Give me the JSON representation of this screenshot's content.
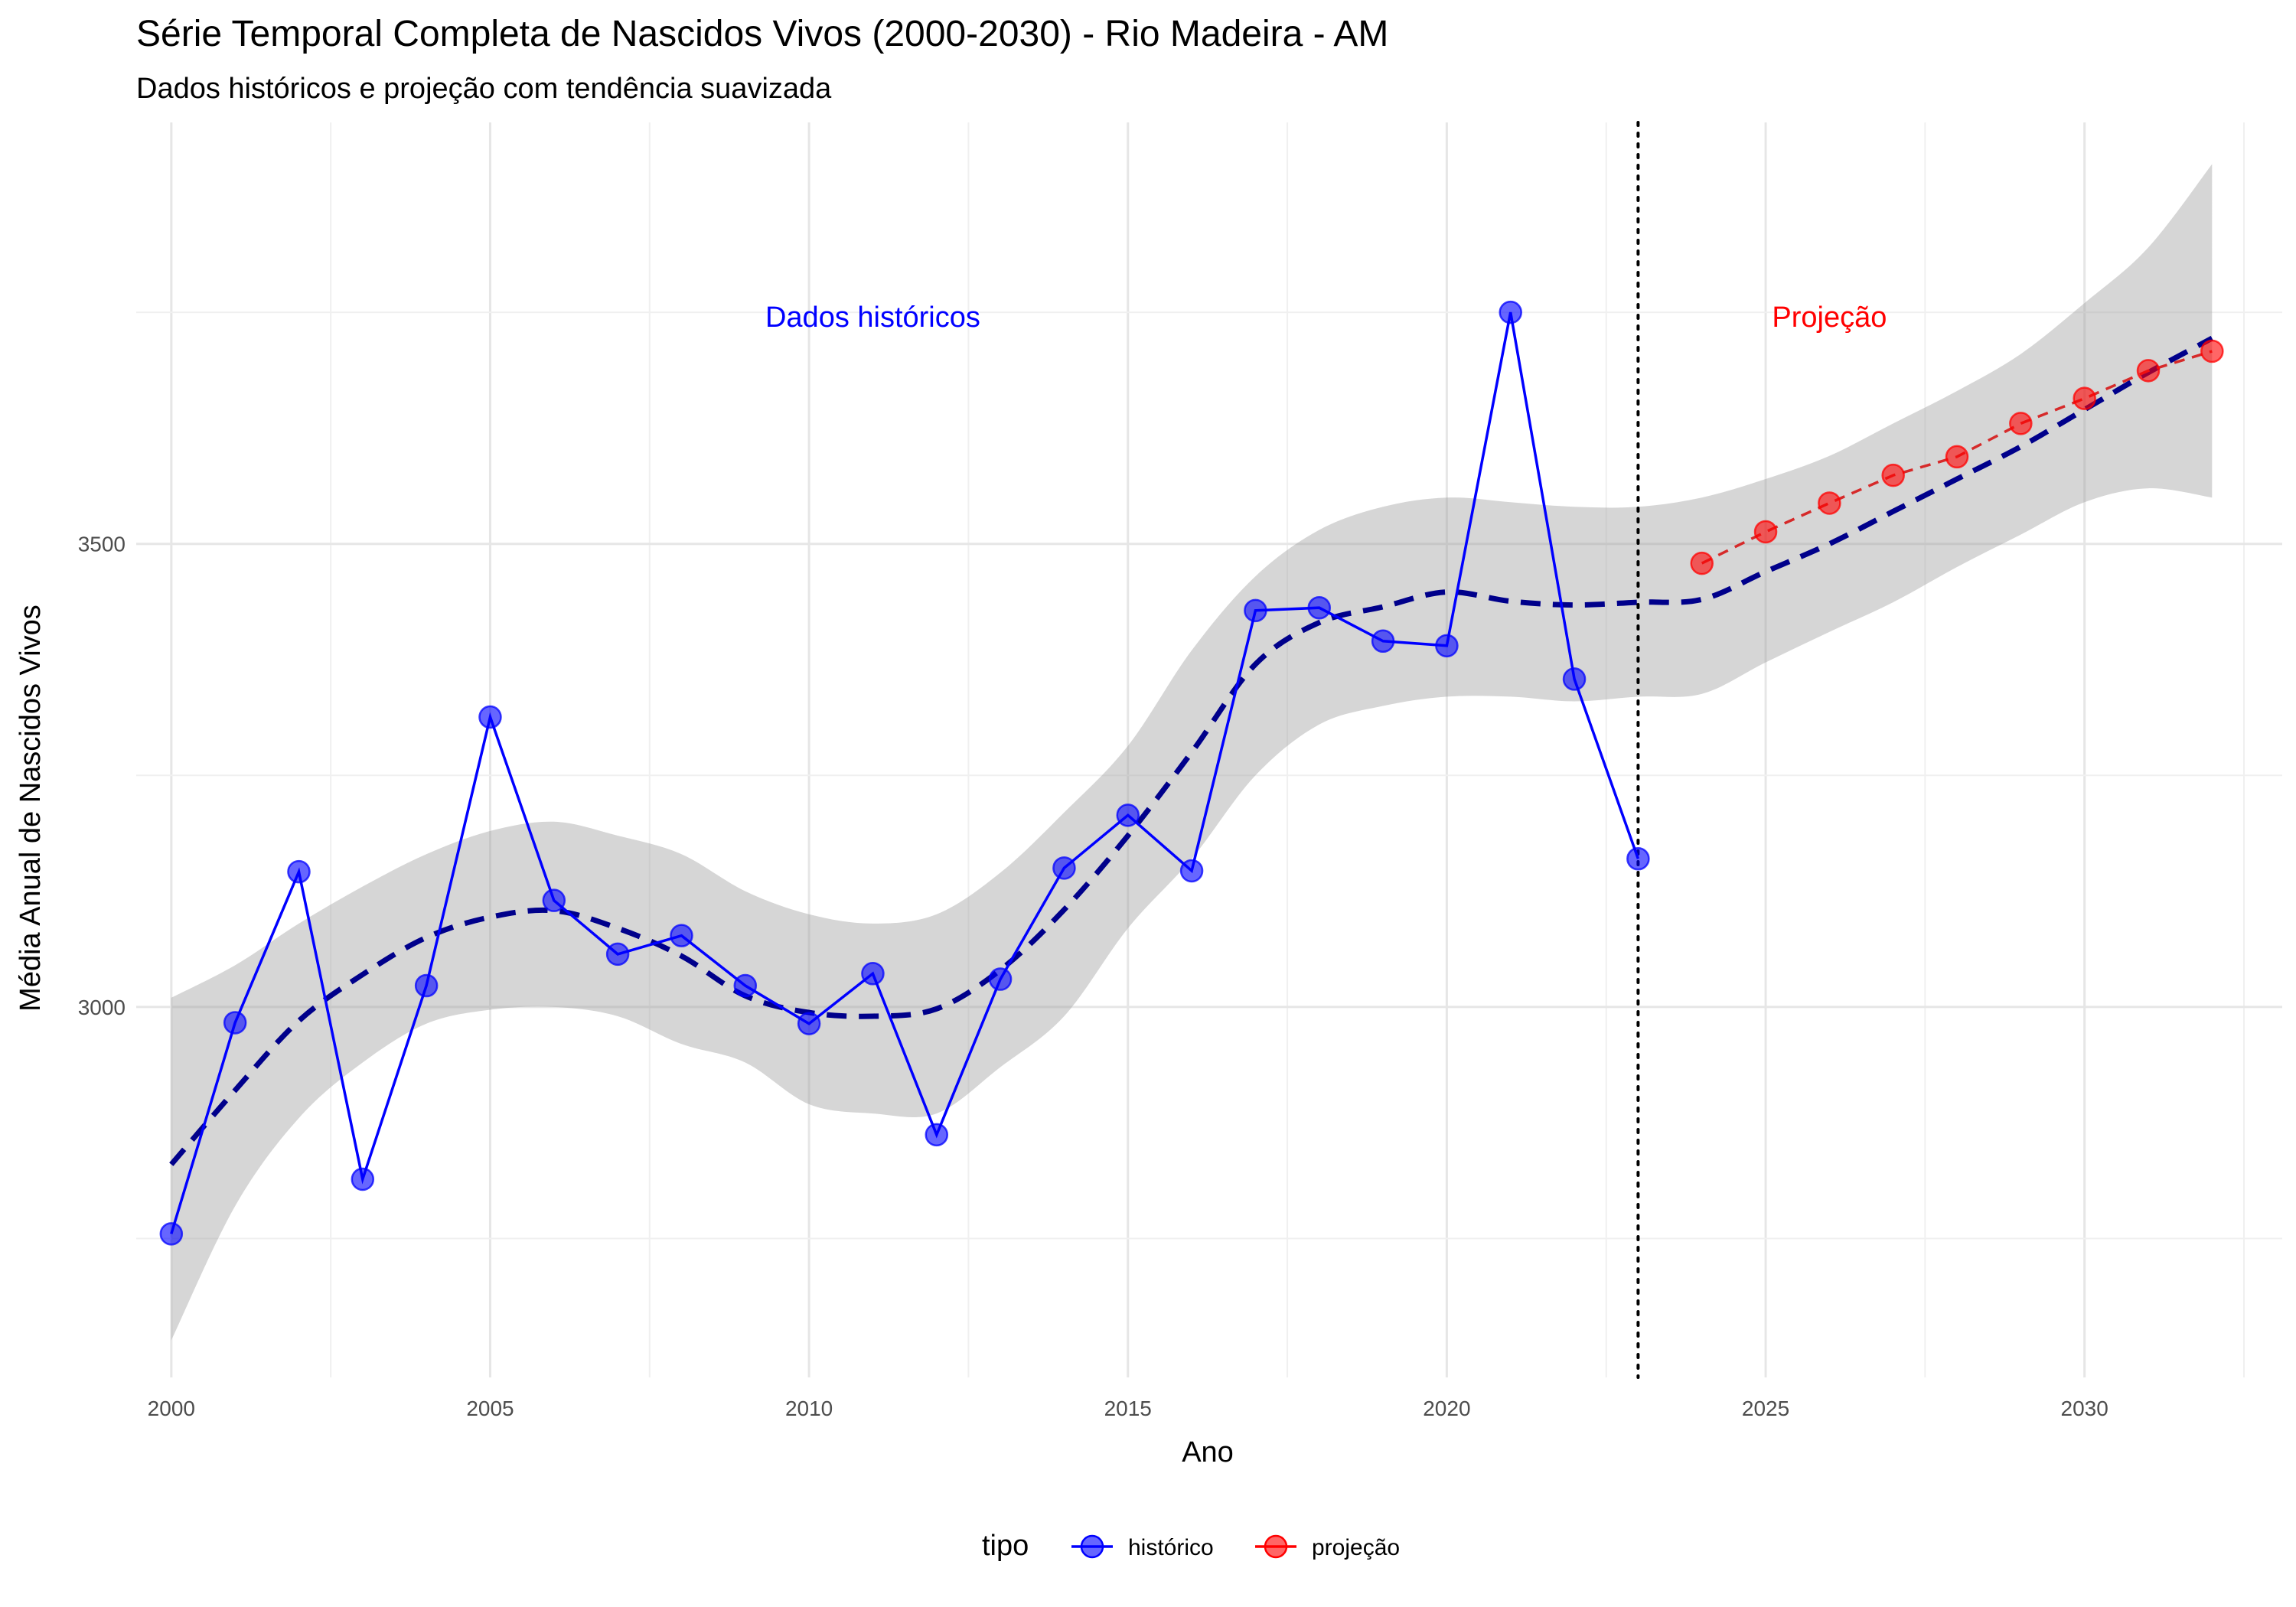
{
  "chart_data": {
    "type": "line",
    "title": "Série Temporal Completa de Nascidos Vivos (2000-2030) -  Rio Madeira - AM",
    "subtitle": "Dados históricos e projeção com tendência suavizada",
    "xlabel": "Ano",
    "ylabel": "Média Anual de Nascidos Vivos",
    "xlim": [
      1999.45,
      2033.1
    ],
    "ylim": [
      2600,
      3955
    ],
    "x_ticks": [
      2000,
      2005,
      2010,
      2015,
      2020,
      2025,
      2030
    ],
    "y_ticks": [
      3000,
      3500
    ],
    "grid": true,
    "legend_position": "bottom",
    "legend_title": "tipo",
    "cutoff_year": 2023,
    "annotations": [
      {
        "text": "Dados históricos",
        "x": 2011,
        "y": 3745,
        "color": "#0000ff"
      },
      {
        "text": "Projeção",
        "x": 2026.0,
        "y": 3745,
        "color": "#ff0000"
      }
    ],
    "series": [
      {
        "name": "histórico",
        "color": "#0000ff",
        "x": [
          2000,
          2001,
          2002,
          2003,
          2004,
          2005,
          2006,
          2007,
          2008,
          2009,
          2010,
          2011,
          2012,
          2013,
          2014,
          2015,
          2016,
          2017,
          2018,
          2019,
          2020,
          2021,
          2022,
          2023
        ],
        "y": [
          2755,
          2983,
          3146,
          2814,
          3023,
          3313,
          3115,
          3057,
          3077,
          3023,
          2982,
          3036,
          2862,
          3030,
          3150,
          3207,
          3147,
          3428,
          3431,
          3395,
          3390,
          3750,
          3354,
          3160
        ]
      },
      {
        "name": "projeção",
        "color": "#ff0000",
        "x": [
          2024,
          2025,
          2026,
          2027,
          2028,
          2029,
          2030,
          2031,
          2032
        ],
        "y": [
          3479,
          3513,
          3544,
          3574,
          3594,
          3630,
          3657,
          3687,
          3708
        ]
      }
    ],
    "trend": {
      "x": [
        2000,
        2001,
        2002,
        2003,
        2004,
        2005,
        2006,
        2007,
        2008,
        2009,
        2010,
        2011,
        2012,
        2013,
        2014,
        2015,
        2016,
        2017,
        2018,
        2019,
        2020,
        2021,
        2022,
        2023,
        2024,
        2025,
        2026,
        2027,
        2028,
        2029,
        2030,
        2031,
        2032
      ],
      "y": [
        2830,
        2910,
        2985,
        3035,
        3075,
        3097,
        3104,
        3085,
        3055,
        3012,
        2994,
        2990,
        2998,
        3040,
        3105,
        3185,
        3275,
        3370,
        3415,
        3432,
        3448,
        3438,
        3434,
        3437,
        3440,
        3470,
        3500,
        3535,
        3570,
        3605,
        3645,
        3685,
        3722
      ],
      "lower": [
        2640,
        2785,
        2880,
        2940,
        2982,
        2997,
        3000,
        2990,
        2960,
        2940,
        2895,
        2885,
        2885,
        2935,
        2990,
        3085,
        3160,
        3250,
        3305,
        3325,
        3335,
        3335,
        3330,
        3335,
        3338,
        3372,
        3405,
        3437,
        3475,
        3510,
        3545,
        3560,
        3550
      ],
      "upper": [
        3010,
        3045,
        3090,
        3130,
        3165,
        3190,
        3200,
        3185,
        3165,
        3125,
        3100,
        3090,
        3100,
        3145,
        3210,
        3282,
        3385,
        3465,
        3515,
        3540,
        3550,
        3545,
        3540,
        3540,
        3550,
        3570,
        3595,
        3630,
        3665,
        3705,
        3760,
        3820,
        3910
      ]
    }
  }
}
